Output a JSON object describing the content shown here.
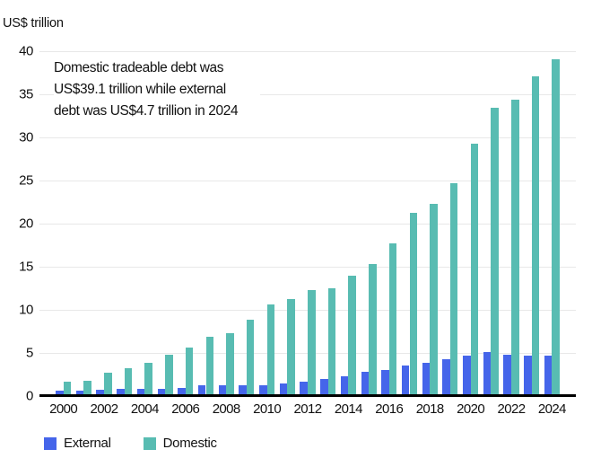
{
  "unit_label": "US$ trillion",
  "annotation": {
    "text": "Domestic tradeable debt was\nUS$39.1 trillion while external\ndebt was US$4.7 trillion in 2024"
  },
  "legend": {
    "items": [
      {
        "label": "External",
        "color": "#4565ea"
      },
      {
        "label": "Domestic",
        "color": "#58bcb2"
      }
    ]
  },
  "colors": {
    "external": "#4565ea",
    "domestic": "#58bcb2",
    "gridline": "#e8e8e8",
    "axis_line": "#000000",
    "text": "#111111"
  },
  "chart_data": {
    "type": "bar",
    "title": "",
    "ylabel": "US$ trillion",
    "xlabel": "",
    "categories": [
      2000,
      2001,
      2002,
      2003,
      2004,
      2005,
      2006,
      2007,
      2008,
      2009,
      2010,
      2011,
      2012,
      2013,
      2014,
      2015,
      2016,
      2017,
      2018,
      2019,
      2020,
      2021,
      2022,
      2023,
      2024
    ],
    "series": [
      {
        "name": "External",
        "color": "#4565ea",
        "values": [
          0.6,
          0.6,
          0.7,
          0.8,
          0.8,
          0.8,
          0.9,
          1.2,
          1.2,
          1.2,
          1.3,
          1.5,
          1.7,
          2.0,
          2.3,
          2.8,
          3.0,
          3.5,
          3.9,
          4.3,
          4.7,
          5.1,
          4.8,
          4.7,
          4.7
        ]
      },
      {
        "name": "Domestic",
        "color": "#58bcb2",
        "values": [
          1.7,
          1.8,
          2.7,
          3.2,
          3.9,
          4.8,
          5.6,
          6.9,
          7.3,
          8.9,
          10.6,
          11.3,
          12.3,
          12.5,
          14.0,
          15.3,
          17.7,
          21.2,
          22.3,
          24.7,
          29.3,
          33.4,
          34.4,
          37.1,
          39.1
        ]
      }
    ],
    "ylim": [
      0,
      40
    ],
    "yticks": [
      0,
      5,
      10,
      15,
      20,
      25,
      30,
      35,
      40
    ],
    "xtick_labels": [
      "2000",
      "2002",
      "2004",
      "2006",
      "2008",
      "2010",
      "2012",
      "2014",
      "2016",
      "2018",
      "2020",
      "2022",
      "2024"
    ],
    "grid": true,
    "legend_position": "bottom-left",
    "annotation": "Domestic tradeable debt was US$39.1 trillion while external debt was US$4.7 trillion in 2024"
  }
}
